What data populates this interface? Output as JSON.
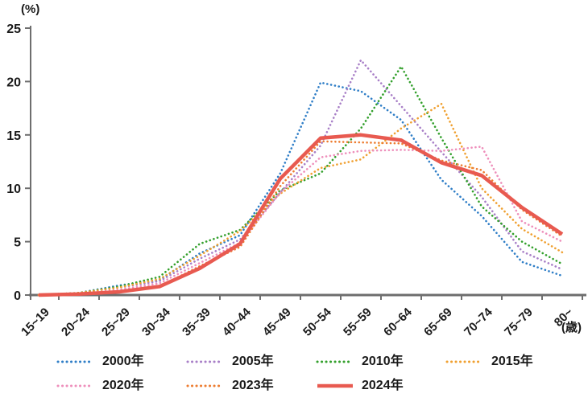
{
  "page": {
    "y_unit_label": "(%)",
    "x_unit_label": "(歳)"
  },
  "chart_data": {
    "type": "line",
    "title": "",
    "xlabel": "(歳)",
    "ylabel": "(%)",
    "ylim": [
      0,
      25
    ],
    "yticks": [
      0,
      5,
      10,
      15,
      20,
      25
    ],
    "grid": false,
    "legend_position": "bottom",
    "categories": [
      "15~19",
      "20~24",
      "25~29",
      "30~34",
      "35~39",
      "40~44",
      "45~49",
      "50~54",
      "55~59",
      "60~64",
      "65~69",
      "70~74",
      "75~79",
      "80~"
    ],
    "series": [
      {
        "name": "2000年",
        "color": "#2f7ec7",
        "style": "dotted",
        "values": [
          0,
          0.2,
          0.9,
          1.4,
          3.9,
          5.6,
          11.4,
          19.9,
          19.1,
          16.4,
          10.8,
          7.4,
          3.1,
          1.8
        ]
      },
      {
        "name": "2005年",
        "color": "#a87fc7",
        "style": "dotted",
        "values": [
          0,
          0.2,
          0.7,
          1.3,
          3.4,
          5.2,
          9.6,
          14.0,
          22.0,
          17.7,
          13.4,
          9.2,
          4.1,
          2.4
        ]
      },
      {
        "name": "2010年",
        "color": "#33a02c",
        "style": "dotted",
        "values": [
          0,
          0.2,
          0.8,
          1.7,
          4.8,
          6.1,
          9.8,
          11.4,
          15.6,
          21.4,
          14.7,
          8.3,
          5.0,
          2.9
        ]
      },
      {
        "name": "2015年",
        "color": "#f0a030",
        "style": "dotted",
        "values": [
          0,
          0.2,
          0.7,
          1.5,
          3.7,
          6.0,
          9.5,
          11.9,
          12.7,
          15.6,
          17.9,
          10.0,
          6.2,
          4.0
        ]
      },
      {
        "name": "2020年",
        "color": "#ee8fbb",
        "style": "dotted",
        "values": [
          0,
          0.1,
          0.5,
          1.1,
          3.0,
          4.9,
          9.6,
          12.9,
          13.5,
          13.6,
          13.5,
          13.9,
          6.9,
          5.0
        ]
      },
      {
        "name": "2023年",
        "color": "#ed7d31",
        "style": "dotted",
        "values": [
          0,
          0.1,
          0.3,
          0.8,
          2.7,
          4.5,
          10.2,
          14.4,
          14.3,
          14.2,
          12.6,
          11.7,
          8.0,
          5.5
        ]
      },
      {
        "name": "2024年",
        "color": "#e85a50",
        "style": "solid",
        "values": [
          0,
          0.1,
          0.3,
          0.8,
          2.5,
          4.8,
          10.9,
          14.7,
          15.0,
          14.5,
          12.4,
          11.2,
          8.2,
          5.7
        ]
      }
    ],
    "legend_rows": [
      [
        0,
        1,
        2,
        3
      ],
      [
        4,
        5,
        6
      ]
    ]
  }
}
